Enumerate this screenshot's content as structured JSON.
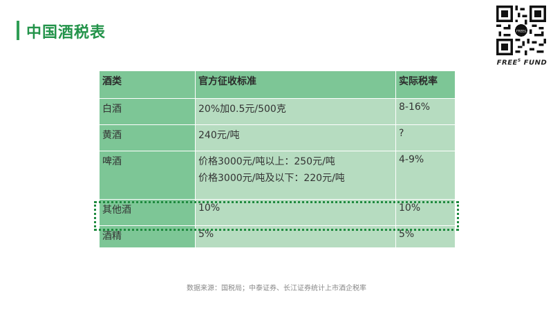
{
  "page": {
    "title": "中国酒税表",
    "source": "数据来源：国税局；中泰证券、长江证券统计上市酒企税率"
  },
  "brand": {
    "name_prefix": "FREE",
    "name_sup": "S",
    "name_suffix": " FUND",
    "qr_center_text": "FREE$"
  },
  "colors": {
    "title_green": "#23934a",
    "header_green": "#7dc696",
    "cell_green": "#b6dcc0",
    "highlight_border": "#1e8a3e"
  },
  "table": {
    "headers": [
      "酒类",
      "官方征收标准",
      "实际税率"
    ],
    "rows": [
      {
        "type": "白酒",
        "standard": "20%加0.5元/500克",
        "standard_line2": "",
        "rate": "8-16%"
      },
      {
        "type": "黄酒",
        "standard": "240元/吨",
        "standard_line2": "",
        "rate": "?"
      },
      {
        "type": "啤酒",
        "standard": "价格3000元/吨以上：250元/吨",
        "standard_line2": "价格3000元/吨及以下：220元/吨",
        "rate": "4-9%"
      },
      {
        "type": "其他酒",
        "standard": "10%",
        "standard_line2": "",
        "rate": "10%"
      },
      {
        "type": "酒精",
        "standard": "5%",
        "standard_line2": "",
        "rate": "5%"
      }
    ],
    "highlighted_row": "其他酒"
  }
}
